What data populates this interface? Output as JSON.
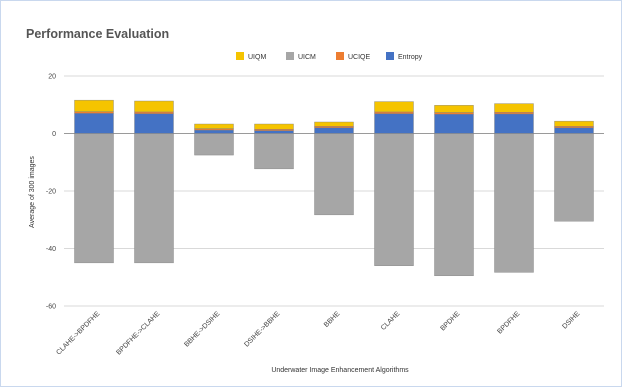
{
  "chart_data": {
    "type": "bar",
    "stacked": true,
    "title": "Performance Evaluation",
    "xlabel": "Underwater Image Enhancement Algorithms",
    "ylabel": "Average of 300 images",
    "ylim": [
      -60,
      20
    ],
    "yticks": [
      20,
      0,
      -20,
      -40,
      -60
    ],
    "grid": true,
    "legend_position": "top",
    "categories": [
      "CLAHE->BPDFHE",
      "BPDFHE->CLAHE",
      "BBHE->DSIHE",
      "DSIHE->BBHE",
      "BBHE",
      "CLAHE",
      "BPDHE",
      "BPDFHE",
      "DSIHE"
    ],
    "series": [
      {
        "name": "UIQM",
        "color": "#f5c400",
        "values": [
          4.0,
          3.8,
          1.6,
          1.8,
          1.5,
          3.6,
          2.5,
          3.0,
          1.8
        ]
      },
      {
        "name": "UICM",
        "color": "#a6a6a6",
        "values": [
          -45,
          -45,
          -7.5,
          -12.3,
          -28.3,
          -46,
          -49.5,
          -48.3,
          -30.5
        ]
      },
      {
        "name": "UCIQE",
        "color": "#ed7d31",
        "values": [
          0.6,
          0.6,
          0.5,
          0.5,
          0.5,
          0.6,
          0.6,
          0.6,
          0.5
        ]
      },
      {
        "name": "Entropy",
        "color": "#4472c4",
        "values": [
          7.0,
          6.9,
          1.2,
          1.0,
          2.0,
          6.9,
          6.7,
          6.8,
          2.0
        ]
      }
    ]
  }
}
